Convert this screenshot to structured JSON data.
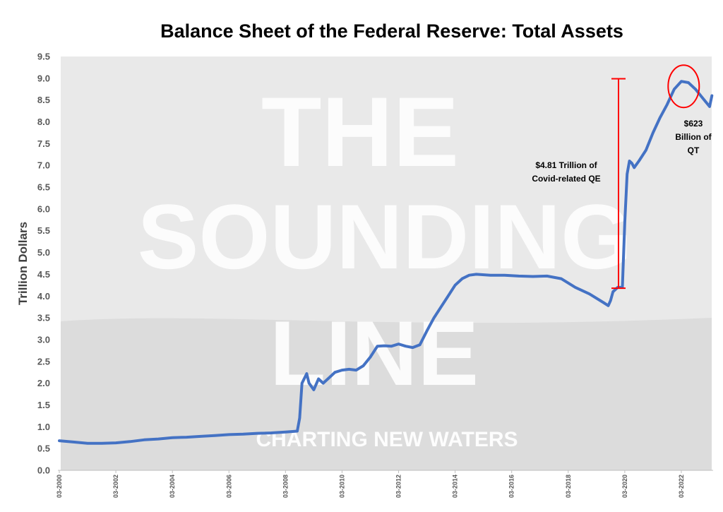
{
  "chart_data": {
    "type": "line",
    "title": "Balance Sheet of the Federal Reserve: Total Assets",
    "xlabel": "",
    "ylabel": "Trillion Dollars",
    "ylim": [
      0,
      9.5
    ],
    "y_ticks": [
      "0.0",
      "0.5",
      "1.0",
      "1.5",
      "2.0",
      "2.5",
      "3.0",
      "3.5",
      "4.0",
      "4.5",
      "5.0",
      "5.5",
      "6.0",
      "6.5",
      "7.0",
      "7.5",
      "8.0",
      "8.5",
      "9.0",
      "9.5"
    ],
    "x_ticks": [
      "03-2000",
      "03-2002",
      "03-2004",
      "03-2006",
      "03-2008",
      "03-2010",
      "03-2012",
      "03-2014",
      "03-2016",
      "03-2018",
      "03-2020",
      "03-2022"
    ],
    "grid": false,
    "line_color": "#4472c4",
    "series": [
      {
        "x": [
          "2000-03",
          "2000-09",
          "2001-03",
          "2001-09",
          "2002-03",
          "2002-09",
          "2003-03",
          "2003-09",
          "2004-03",
          "2004-09",
          "2005-03",
          "2005-09",
          "2006-03",
          "2006-09",
          "2007-03",
          "2007-09",
          "2008-03",
          "2008-08",
          "2008-09",
          "2008-10",
          "2008-12",
          "2009-01",
          "2009-03",
          "2009-05",
          "2009-07",
          "2009-09",
          "2009-12",
          "2010-03",
          "2010-06",
          "2010-09",
          "2010-12",
          "2011-03",
          "2011-06",
          "2011-09",
          "2011-12",
          "2012-03",
          "2012-06",
          "2012-09",
          "2012-12",
          "2013-03",
          "2013-06",
          "2013-09",
          "2013-12",
          "2014-03",
          "2014-06",
          "2014-09",
          "2014-12",
          "2015-06",
          "2015-12",
          "2016-06",
          "2016-12",
          "2017-06",
          "2017-12",
          "2018-06",
          "2018-12",
          "2019-06",
          "2019-08",
          "2019-09",
          "2019-10",
          "2019-12",
          "2020-02",
          "2020-03",
          "2020-04",
          "2020-05",
          "2020-06",
          "2020-07",
          "2020-09",
          "2020-12",
          "2021-03",
          "2021-06",
          "2021-09",
          "2021-12",
          "2022-03",
          "2022-06",
          "2022-09",
          "2022-12",
          "2023-03",
          "2023-04"
        ],
        "values": [
          0.68,
          0.65,
          0.62,
          0.62,
          0.63,
          0.66,
          0.7,
          0.72,
          0.75,
          0.76,
          0.78,
          0.8,
          0.82,
          0.83,
          0.85,
          0.86,
          0.88,
          0.9,
          1.2,
          2.0,
          2.22,
          2.0,
          1.85,
          2.1,
          2.0,
          2.1,
          2.25,
          2.3,
          2.32,
          2.3,
          2.4,
          2.6,
          2.85,
          2.86,
          2.85,
          2.9,
          2.85,
          2.82,
          2.88,
          3.2,
          3.5,
          3.75,
          4.0,
          4.25,
          4.4,
          4.48,
          4.5,
          4.48,
          4.48,
          4.46,
          4.45,
          4.46,
          4.4,
          4.2,
          4.05,
          3.85,
          3.78,
          3.9,
          4.1,
          4.2,
          4.2,
          5.7,
          6.8,
          7.1,
          7.05,
          6.95,
          7.1,
          7.35,
          7.75,
          8.1,
          8.4,
          8.75,
          8.93,
          8.9,
          8.75,
          8.55,
          8.35,
          8.6
        ]
      }
    ],
    "annotations": [
      {
        "text_lines": [
          "$4.81 Trillion of",
          "Covid-related  QE"
        ],
        "bracket_from": 4.18,
        "bracket_to": 8.99,
        "at_x": "2019-09"
      },
      {
        "text_lines": [
          "$623",
          "Billion of",
          "QT"
        ],
        "circle_at_x": "2022-04",
        "circle_at_y": 8.93
      }
    ],
    "watermark_lines": [
      "THE",
      "SOUNDING",
      "LINE"
    ],
    "watermark_tagline": "CHARTING NEW WATERS"
  }
}
